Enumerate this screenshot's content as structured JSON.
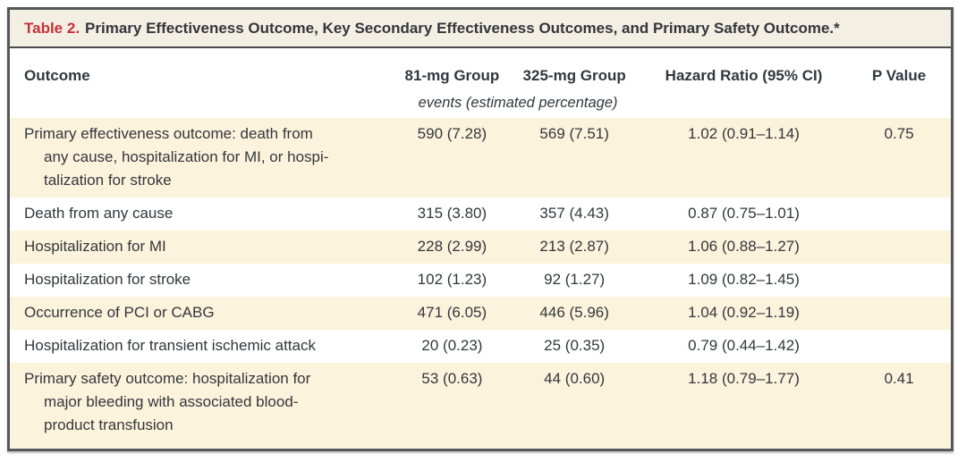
{
  "panel": {
    "title": {
      "label": "Table 2.",
      "text": "Primary Effectiveness Outcome, Key Secondary Effectiveness Outcomes, and Primary Safety Outcome.*"
    },
    "columns": {
      "outcome": "Outcome",
      "g81": "81-mg Group",
      "g325": "325-mg Group",
      "hazard": "Hazard Ratio (95% CI)",
      "p": "P Value"
    },
    "units_note": "events (estimated percentage)",
    "rows": [
      {
        "outcome": "Primary effectiveness outcome: death from\nany cause, hospitalization for MI, or hospi-\ntalization for stroke",
        "g81": "590 (7.28)",
        "g325": "569 (7.51)",
        "hazard": "1.02 (0.91–1.14)",
        "p": "0.75"
      },
      {
        "outcome": "Death from any cause",
        "g81": "315 (3.80)",
        "g325": "357 (4.43)",
        "hazard": "0.87 (0.75–1.01)",
        "p": ""
      },
      {
        "outcome": "Hospitalization for MI",
        "g81": "228 (2.99)",
        "g325": "213 (2.87)",
        "hazard": "1.06 (0.88–1.27)",
        "p": ""
      },
      {
        "outcome": "Hospitalization for stroke",
        "g81": "102 (1.23)",
        "g325": "92 (1.27)",
        "hazard": "1.09 (0.82–1.45)",
        "p": ""
      },
      {
        "outcome": "Occurrence of PCI or CABG",
        "g81": "471 (6.05)",
        "g325": "446 (5.96)",
        "hazard": "1.04 (0.92–1.19)",
        "p": ""
      },
      {
        "outcome": "Hospitalization for transient ischemic attack",
        "g81": "20 (0.23)",
        "g325": "25 (0.35)",
        "hazard": "0.79 (0.44–1.42)",
        "p": ""
      },
      {
        "outcome": "Primary safety outcome: hospitalization for\nmajor bleeding with associated blood-\nproduct transfusion",
        "g81": "53 (0.63)",
        "g325": "44 (0.60)",
        "hazard": "1.18 (0.79–1.77)",
        "p": "0.41"
      }
    ],
    "colors": {
      "accent_red": "#c5313a",
      "stripe_cream": "#fcf3dc",
      "title_band": "#f4efe3",
      "border_gray": "#56575b",
      "text": "#33363d"
    }
  }
}
